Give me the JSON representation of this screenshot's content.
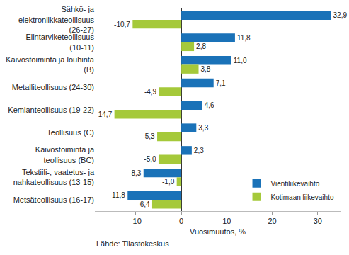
{
  "chart_data": {
    "type": "bar",
    "orientation": "horizontal",
    "categories": [
      "Sähkö- ja elektroniikkateollisuus (26-27)",
      "Elintarviketeollisuus (10-11)",
      "Kaivostoiminta ja louhinta (B)",
      "Metalliteollisuus (24-30)",
      "Kemianteollisuus (19-22)",
      "Teollisuus (C)",
      "Kaivostoiminta ja teollisuus (BC)",
      "Tekstiili-, vaatetus- ja nahkateollisuus (13-15)",
      "Metsäteollisuus (16-17)"
    ],
    "series": [
      {
        "name": "Vientiliikevaihto",
        "color": "#1a72b8",
        "values": [
          32.9,
          11.8,
          11.0,
          7.1,
          4.6,
          3.3,
          2.3,
          -8.3,
          -11.8
        ],
        "value_labels": [
          "32,9",
          "11,8",
          "11,0",
          "7,1",
          "4,6",
          "3,3",
          "2,3",
          "-8,3",
          "-11,8"
        ]
      },
      {
        "name": "Kotimaan liikevaihto",
        "color": "#a5c93a",
        "values": [
          -10.7,
          2.8,
          3.8,
          -4.9,
          -14.7,
          -5.3,
          -5.0,
          -1.0,
          -6.4
        ],
        "value_labels": [
          "-10,7",
          "2,8",
          "3,8",
          "-4,9",
          "-14,7",
          "-5,3",
          "-5,0",
          "-1,0",
          "-6,4"
        ]
      }
    ],
    "x_label": "Vuosimuutos, %",
    "source": "Lähde: Tilastokeskus",
    "xlim": [
      -19,
      35
    ],
    "xticks": [
      -10,
      0,
      10,
      20,
      30
    ],
    "grid": false,
    "legend": "lower right",
    "data_labels": true
  }
}
